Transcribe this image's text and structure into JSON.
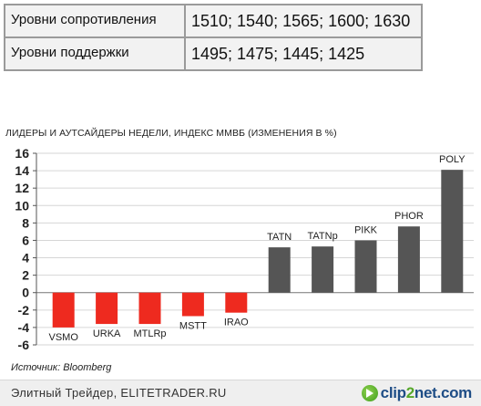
{
  "levels": {
    "resistance_label": "Уровни сопротивления",
    "resistance_value": "1510; 1540; 1565; 1600; 1630",
    "support_label": "Уровни поддержки",
    "support_value": "1495; 1475; 1445; 1425"
  },
  "chart_data": {
    "type": "bar",
    "title": "ЛИДЕРЫ И АУТСАЙДЕРЫ НЕДЕЛИ, ИНДЕКС ММВБ (ИЗМЕНЕНИЯ В %)",
    "xlabel": "",
    "ylabel": "",
    "categories": [
      "VSMO",
      "URKA",
      "MTLRp",
      "MSTT",
      "IRAO",
      "TATN",
      "TATNp",
      "PIKK",
      "PHOR",
      "POLY"
    ],
    "values": [
      -4.0,
      -3.6,
      -3.6,
      -2.7,
      -2.3,
      5.2,
      5.3,
      6.0,
      7.6,
      14.1
    ],
    "ylim": [
      -6,
      16
    ],
    "yticks": [
      -6,
      -4,
      -2,
      0,
      2,
      4,
      6,
      8,
      10,
      12,
      14,
      16
    ],
    "grid": true,
    "negative_color": "#ee2a1f",
    "positive_color": "#555555"
  },
  "source": "Источник: Bloomberg",
  "footer": {
    "text": "Элитный Трейдер, ELITETRADER.RU",
    "logo_icon": "play-circle-icon",
    "logo_a": "clip",
    "logo_b": "2",
    "logo_c": "net.com"
  }
}
